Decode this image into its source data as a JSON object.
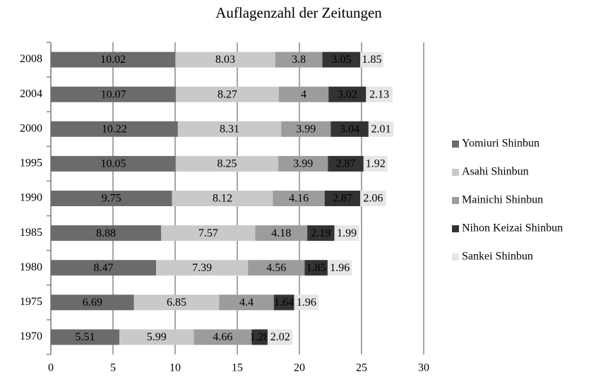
{
  "chart_data": {
    "type": "stacked-bar-horizontal",
    "title": "Auflagenzahl der Zeitungen",
    "categories": [
      "2008",
      "2004",
      "2000",
      "1995",
      "1990",
      "1985",
      "1980",
      "1975",
      "1970"
    ],
    "series": [
      {
        "name": "Yomiuri Shinbun",
        "color": "#6b6b6b",
        "values": [
          10.02,
          10.07,
          10.22,
          10.05,
          9.75,
          8.88,
          8.47,
          6.69,
          5.51
        ]
      },
      {
        "name": "Asahi Shinbun",
        "color": "#c9c9c9",
        "values": [
          8.03,
          8.27,
          8.31,
          8.25,
          8.12,
          7.57,
          7.39,
          6.85,
          5.99
        ]
      },
      {
        "name": "Mainichi Shinbun",
        "color": "#9c9c9c",
        "values": [
          3.8,
          4,
          3.99,
          3.99,
          4.16,
          4.18,
          4.56,
          4.4,
          4.66
        ]
      },
      {
        "name": "Nihon Keizai Shinbun",
        "color": "#333333",
        "values": [
          3.05,
          3.02,
          3.04,
          2.87,
          2.87,
          2.19,
          1.85,
          1.64,
          1.28
        ]
      },
      {
        "name": "Sankei Shinbun",
        "color": "#e6e6e6",
        "values": [
          1.85,
          2.13,
          2.01,
          1.92,
          2.06,
          1.99,
          1.96,
          1.96,
          2.02
        ]
      }
    ],
    "xlim": [
      0,
      30
    ],
    "xticks": [
      0,
      5,
      10,
      15,
      20,
      25,
      30
    ],
    "grid": true,
    "legend": "right"
  }
}
